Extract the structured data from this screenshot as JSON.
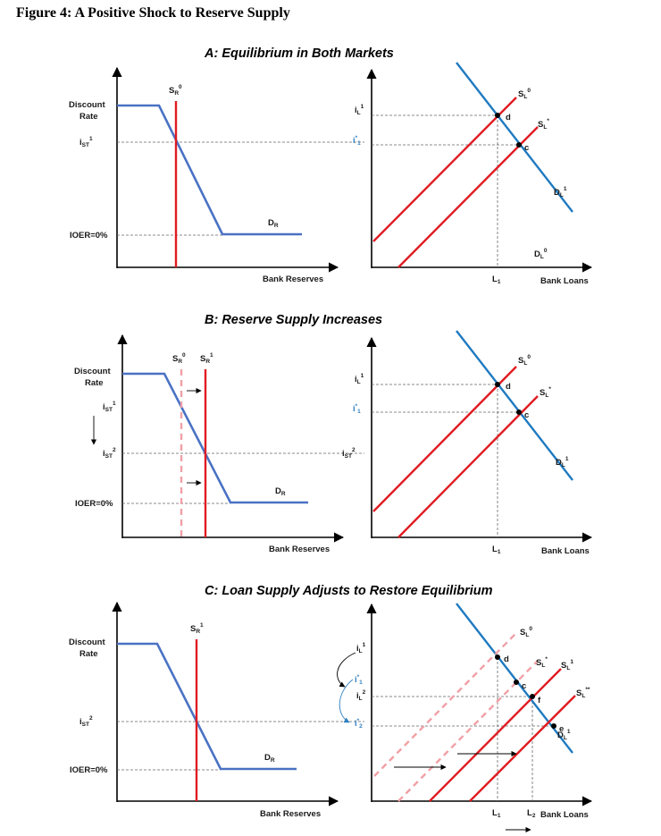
{
  "figure_title": "Figure 4: A Positive Shock to Reserve Supply",
  "colors": {
    "reserve_demand": "#4a72c4",
    "loan_demand": "#1f7ac0",
    "supply": "#e01b22",
    "supply_previous": "#f0a0a6",
    "blue_label": "#2f7fc1"
  },
  "chart_data": [
    {
      "type": "line",
      "panel": "A",
      "title": "A: Equilibrium in Both Markets",
      "reserves": {
        "ylabel_line1": "Discount",
        "ylabel_line2": "Rate",
        "xlabel": "Bank Reserves",
        "rate_i_st": "i",
        "rate_i_st_sub": "ST",
        "rate_i_st_sup": "1",
        "ioer": "IOER=0%",
        "supply": "S",
        "supply_sub": "R",
        "supply_sup": "0",
        "demand": "D",
        "demand_sub": "R"
      },
      "loans": {
        "xlabel": "Bank Loans",
        "rate_il": "i",
        "rate_il_sub": "L",
        "rate_il_sup": "1",
        "rate_istar": "i",
        "rate_istar_sup": "*",
        "rate_istar_sub": "1",
        "loan_qty": "L",
        "loan_qty_sub": "1",
        "supply0": "S",
        "supply0_sub": "L",
        "supply0_sup": "0",
        "supplystar": "S",
        "supplystar_sub": "L",
        "supplystar_sup": "*",
        "demand1": "D",
        "demand1_sub": "L",
        "demand1_sup": "1",
        "demand0": "D",
        "demand0_sub": "L",
        "demand0_sup": "0",
        "point_d": "d",
        "point_c": "c"
      }
    },
    {
      "type": "line",
      "panel": "B",
      "title": "B: Reserve Supply Increases",
      "reserves": {
        "ylabel_line1": "Discount",
        "ylabel_line2": "Rate",
        "xlabel": "Bank Reserves",
        "rate_i1": "i",
        "rate_i1_sub": "ST",
        "rate_i1_sup": "1",
        "rate_i2": "i",
        "rate_i2_sub": "ST",
        "rate_i2_sup": "2",
        "ioer": "IOER=0%",
        "supply0": "S",
        "supply0_sub": "R",
        "supply0_sup": "0",
        "supply1": "S",
        "supply1_sub": "R",
        "supply1_sup": "1",
        "demand": "D",
        "demand_sub": "R"
      },
      "loans": {
        "xlabel": "Bank Loans",
        "rate_il": "i",
        "rate_il_sub": "L",
        "rate_il_sup": "1",
        "rate_istar": "i",
        "rate_istar_sup": "*",
        "rate_istar_sub": "1",
        "rate_ist2": "i",
        "rate_ist2_sub": "ST",
        "rate_ist2_sup": "2",
        "loan_qty": "L",
        "loan_qty_sub": "1",
        "supply0": "S",
        "supply0_sub": "L",
        "supply0_sup": "0",
        "supplystar": "S",
        "supplystar_sub": "L",
        "supplystar_sup": "*",
        "demand1": "D",
        "demand1_sub": "L",
        "demand1_sup": "1",
        "point_d": "d",
        "point_c": "c"
      }
    },
    {
      "type": "line",
      "panel": "C",
      "title": "C: Loan Supply Adjusts to Restore Equilibrium",
      "reserves": {
        "ylabel_line1": "Discount",
        "ylabel_line2": "Rate",
        "xlabel": "Bank Reserves",
        "rate_i2": "i",
        "rate_i2_sub": "ST",
        "rate_i2_sup": "2",
        "ioer": "IOER=0%",
        "supply1": "S",
        "supply1_sub": "R",
        "supply1_sup": "1",
        "demand": "D",
        "demand_sub": "R"
      },
      "loans": {
        "xlabel": "Bank Loans",
        "rate_il1": "i",
        "rate_il1_sub": "L",
        "rate_il1_sup": "1",
        "rate_istar1": "i",
        "rate_istar1_sup": "*",
        "rate_istar1_sub": "1",
        "rate_il2": "i",
        "rate_il2_sub": "L",
        "rate_il2_sup": "2",
        "rate_istar2": "i",
        "rate_istar2_sup": "*",
        "rate_istar2_sub": "2",
        "loan_qty1": "L",
        "loan_qty1_sub": "1",
        "loan_qty2": "L",
        "loan_qty2_sub": "2",
        "supply0": "S",
        "supply0_sub": "L",
        "supply0_sup": "0",
        "supplystar": "S",
        "supplystar_sub": "L",
        "supplystar_sup": "*",
        "supply1": "S",
        "supply1_sub": "L",
        "supply1_sup": "1",
        "supplystarstar": "S",
        "supplystarstar_sub": "L",
        "supplystarstar_sup": "**",
        "demand1": "D",
        "demand1_sub": "L",
        "demand1_sup": "1",
        "point_d": "d",
        "point_c": "c",
        "point_f": "f",
        "point_e": "e"
      }
    }
  ]
}
